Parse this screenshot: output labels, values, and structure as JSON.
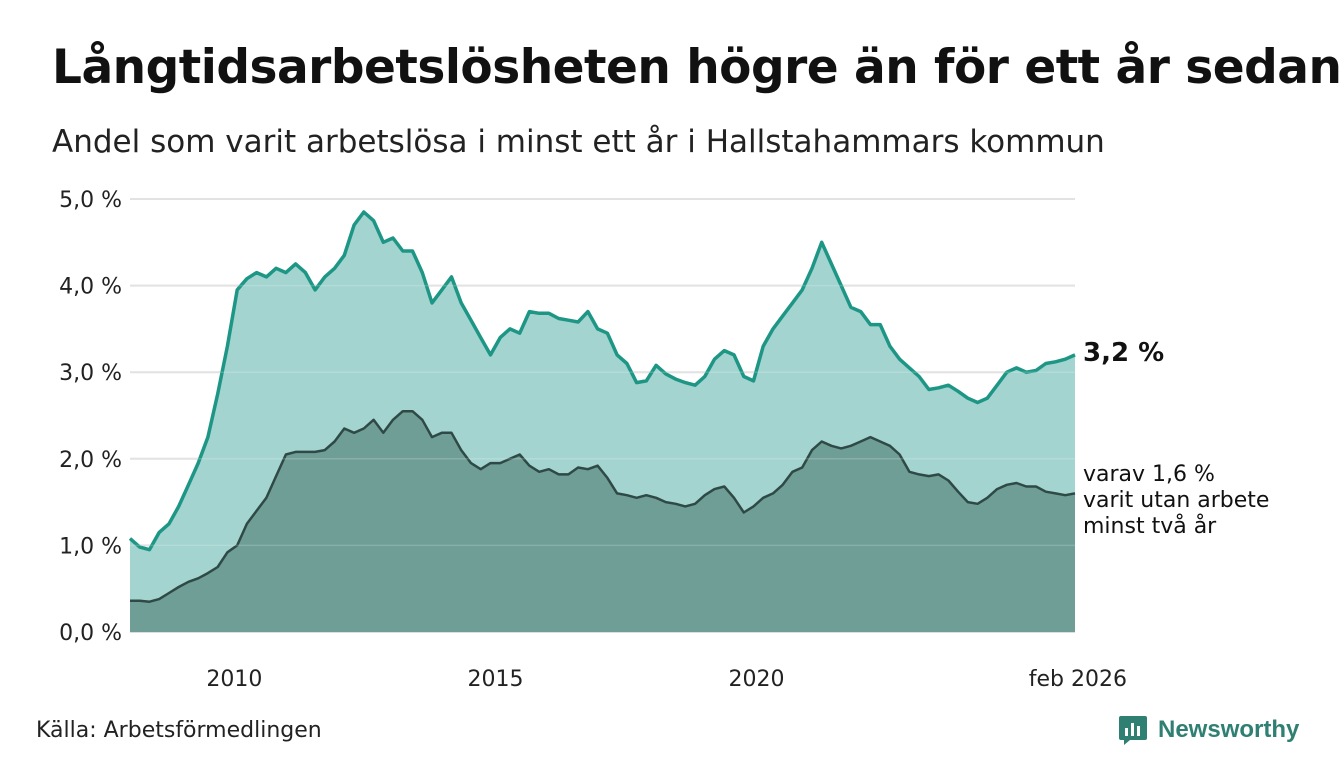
{
  "title": "Långtidsarbetslösheten högre än för ett år sedan",
  "subtitle": "Andel som varit arbetslösa i minst ett år i Hallstahammars kommun",
  "source": "Källa: Arbetsförmedlingen",
  "brand": "Newsworthy",
  "colors": {
    "upper_fill": "#a3d4cf",
    "upper_line": "#1e9686",
    "lower_fill": "#6f9e97",
    "lower_line": "#2f4a46",
    "grid": "#dddddd",
    "brand": "#2f7f73"
  },
  "annotations": {
    "end_value": "3,2 %",
    "sub_line1": "varav 1,6 %",
    "sub_line2": "varit utan arbete",
    "sub_line3": "minst två år"
  },
  "chart_data": {
    "type": "area",
    "x_start": 2008.0,
    "x_end": 2026.1,
    "step_years": 0.25,
    "ylim": [
      0,
      5
    ],
    "y_ticks": [
      0,
      1,
      2,
      3,
      4,
      5
    ],
    "y_tick_labels": [
      "0,0 %",
      "1,0 %",
      "2,0 %",
      "3,0 %",
      "4,0 %",
      "5,0 %"
    ],
    "x_ticks": [
      2010,
      2015,
      2020,
      2026.1
    ],
    "x_tick_labels": [
      "2010",
      "2015",
      "2020",
      "feb 2026"
    ],
    "series": [
      {
        "name": "Arbetslösa minst ett år",
        "values": [
          1.08,
          0.98,
          0.95,
          1.15,
          1.25,
          1.45,
          1.7,
          1.95,
          2.25,
          2.75,
          3.3,
          3.95,
          4.08,
          4.15,
          4.1,
          4.2,
          4.15,
          4.25,
          4.15,
          3.95,
          4.1,
          4.2,
          4.35,
          4.7,
          4.85,
          4.75,
          4.5,
          4.55,
          4.4,
          4.4,
          4.15,
          3.8,
          3.95,
          4.1,
          3.8,
          3.6,
          3.4,
          3.2,
          3.4,
          3.5,
          3.45,
          3.7,
          3.68,
          3.68,
          3.62,
          3.6,
          3.58,
          3.7,
          3.5,
          3.45,
          3.2,
          3.1,
          2.88,
          2.9,
          3.08,
          2.98,
          2.92,
          2.88,
          2.85,
          2.95,
          3.15,
          3.25,
          3.2,
          2.95,
          2.9,
          3.3,
          3.5,
          3.65,
          3.8,
          3.95,
          4.2,
          4.5,
          4.25,
          4.0,
          3.75,
          3.7,
          3.55,
          3.55,
          3.3,
          3.15,
          3.05,
          2.95,
          2.8,
          2.82,
          2.85,
          2.78,
          2.7,
          2.65,
          2.7,
          2.85,
          3.0,
          3.05,
          3.0,
          3.02,
          3.1,
          3.12,
          3.15,
          3.2
        ]
      },
      {
        "name": "Varav utan arbete minst två år",
        "values": [
          0.36,
          0.36,
          0.35,
          0.38,
          0.45,
          0.52,
          0.58,
          0.62,
          0.68,
          0.75,
          0.92,
          1.0,
          1.25,
          1.4,
          1.55,
          1.8,
          2.05,
          2.08,
          2.08,
          2.08,
          2.1,
          2.2,
          2.35,
          2.3,
          2.35,
          2.45,
          2.3,
          2.45,
          2.55,
          2.55,
          2.45,
          2.25,
          2.3,
          2.3,
          2.1,
          1.95,
          1.88,
          1.95,
          1.95,
          2.0,
          2.05,
          1.92,
          1.85,
          1.88,
          1.82,
          1.82,
          1.9,
          1.88,
          1.92,
          1.78,
          1.6,
          1.58,
          1.55,
          1.58,
          1.55,
          1.5,
          1.48,
          1.45,
          1.48,
          1.58,
          1.65,
          1.68,
          1.55,
          1.38,
          1.45,
          1.55,
          1.6,
          1.7,
          1.85,
          1.9,
          2.1,
          2.2,
          2.15,
          2.12,
          2.15,
          2.2,
          2.25,
          2.2,
          2.15,
          2.05,
          1.85,
          1.82,
          1.8,
          1.82,
          1.75,
          1.62,
          1.5,
          1.48,
          1.55,
          1.65,
          1.7,
          1.72,
          1.68,
          1.68,
          1.62,
          1.6,
          1.58,
          1.6
        ]
      }
    ]
  }
}
